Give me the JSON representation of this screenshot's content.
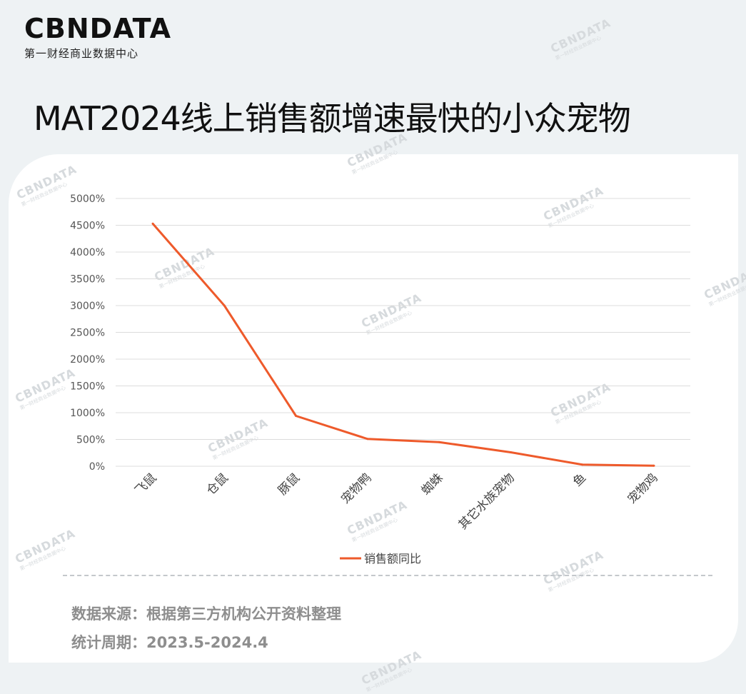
{
  "logo": {
    "brand": "CBNDATA",
    "tagline": "第一财经商业数据中心"
  },
  "title": "MAT2024线上销售额增速最快的小众宠物",
  "chart_data": {
    "type": "line",
    "title": "",
    "xlabel": "",
    "ylabel": "",
    "categories": [
      "飞鼠",
      "仓鼠",
      "豚鼠",
      "宠物鸭",
      "蜘蛛",
      "其它水族宠物",
      "鱼",
      "宠物鸡"
    ],
    "series": [
      {
        "name": "销售额同比",
        "values": [
          4530,
          3000,
          940,
          510,
          450,
          260,
          30,
          10
        ],
        "color": "#ee5a2b"
      }
    ],
    "ylim": [
      0,
      5000
    ],
    "yticks": [
      0,
      500,
      1000,
      1500,
      2000,
      2500,
      3000,
      3500,
      4000,
      4500,
      5000
    ],
    "ytick_labels": [
      "0%",
      "500%",
      "1000%",
      "1500%",
      "2000%",
      "2500%",
      "3000%",
      "3500%",
      "4000%",
      "4500%",
      "5000%"
    ],
    "grid": true,
    "legend_position": "bottom"
  },
  "footer": {
    "source": "数据来源：根据第三方机构公开资料整理",
    "period": "统计周期：2023.5-2024.4"
  }
}
